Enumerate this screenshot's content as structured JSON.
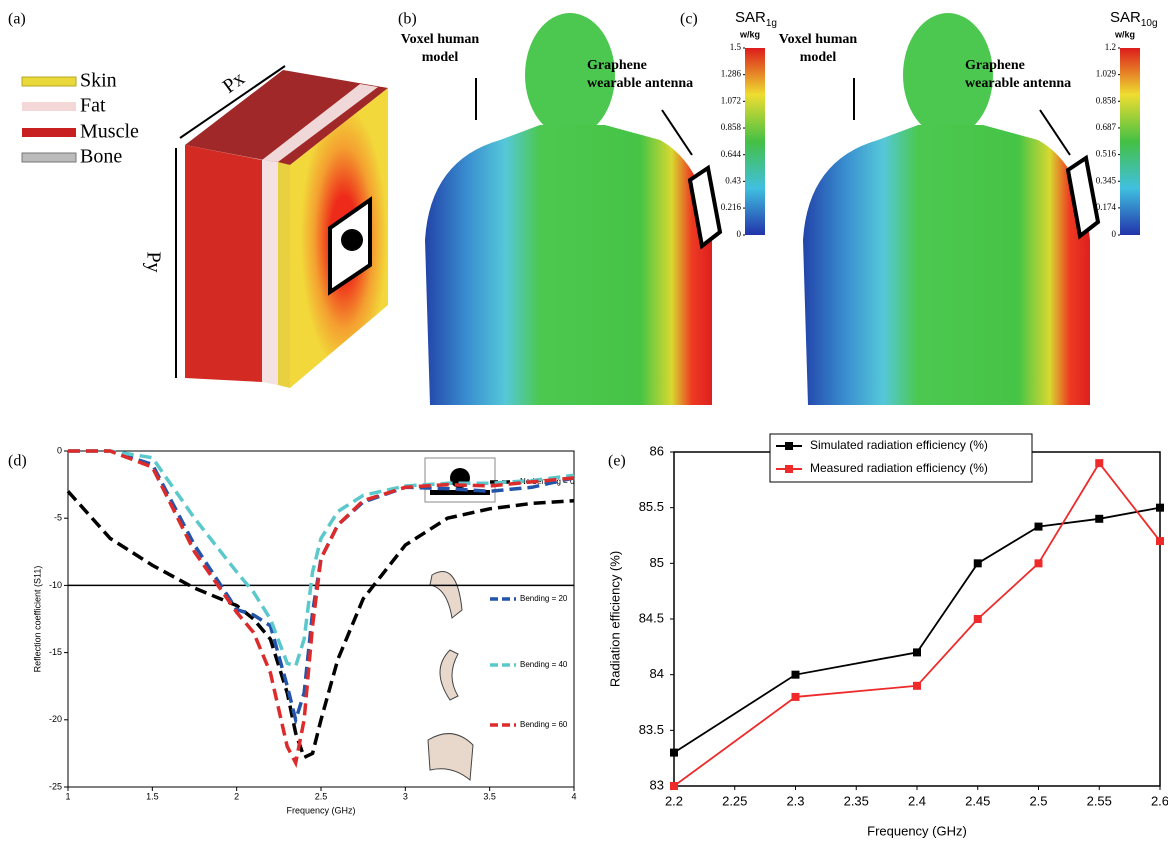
{
  "panels": {
    "a": {
      "label": "(a)",
      "legend": [
        "Skin",
        "Fat",
        "Muscle",
        "Bone"
      ],
      "dims": [
        "Px",
        "Py"
      ]
    },
    "b": {
      "label": "(b)",
      "annotations": [
        [
          "Voxel human",
          "model"
        ],
        [
          "Graphene",
          "wearable antenna"
        ]
      ],
      "colorbar": {
        "title": "SAR",
        "subscript": "1g",
        "unit": "w/kg",
        "ticks": [
          1.5,
          1.286,
          1.072,
          0.858,
          0.644,
          0.43,
          0.216,
          0
        ]
      }
    },
    "c": {
      "label": "(c)",
      "annotations": [
        [
          "Voxel human",
          "model"
        ],
        [
          "Graphene",
          "wearable antenna"
        ]
      ],
      "colorbar": {
        "title": "SAR",
        "subscript": "10g",
        "unit": "w/kg",
        "ticks": [
          1.2,
          1.029,
          0.858,
          0.687,
          0.516,
          0.345,
          0.174,
          0
        ]
      }
    }
  },
  "chart_data": [
    {
      "type": "line",
      "panel_label": "(d)",
      "x_label": "Frequency (GHz)",
      "y_label": "Reflection coefficient (S11)",
      "x": [
        1,
        1.25,
        1.5,
        1.75,
        2,
        2.1,
        2.2,
        2.3,
        2.35,
        2.4,
        2.45,
        2.5,
        2.6,
        2.75,
        3,
        3.25,
        3.5,
        3.75,
        4
      ],
      "series": [
        {
          "name": "No bending = 0",
          "color": "#000000",
          "values": [
            -3,
            -6.5,
            -8.5,
            -10.2,
            -11.5,
            -12.5,
            -14,
            -18,
            -21,
            -22.8,
            -22.5,
            -20,
            -15.5,
            -11,
            -7,
            -5,
            -4.3,
            -3.9,
            -3.7
          ]
        },
        {
          "name": "Bending = 20",
          "color": "#2255aa",
          "values": [
            0,
            0,
            -1,
            -7,
            -11.8,
            -12.2,
            -13,
            -17.5,
            -20,
            -18,
            -12,
            -8,
            -5.5,
            -3.8,
            -2.7,
            -2.8,
            -3,
            -2.7,
            -2
          ]
        },
        {
          "name": "Bending = 40",
          "color": "#5bc8cc",
          "values": [
            0,
            0,
            -0.5,
            -5,
            -9,
            -10.5,
            -12.5,
            -15.8,
            -16,
            -14,
            -9,
            -6.5,
            -4.5,
            -3.3,
            -2.6,
            -2.4,
            -2.4,
            -2.2,
            -1.8
          ]
        },
        {
          "name": "Bending = 60",
          "color": "#dd2b2b",
          "values": [
            0,
            0,
            -1.2,
            -7.5,
            -12,
            -13.5,
            -16.5,
            -22,
            -23.2,
            -20,
            -13,
            -8,
            -5.5,
            -3.7,
            -2.7,
            -2.5,
            -2.6,
            -2.3,
            -2
          ]
        }
      ],
      "xlim": [
        1,
        4
      ],
      "ylim": [
        -25,
        0
      ],
      "xticks": [
        1,
        1.5,
        2,
        2.5,
        3,
        3.5,
        4
      ],
      "yticks": [
        0,
        -5,
        -10,
        -15,
        -20,
        -25
      ],
      "reference_line": -10,
      "dashed": true,
      "legend": "right"
    },
    {
      "type": "line",
      "panel_label": "(e)",
      "x_label": "Frequency (GHz)",
      "y_label": "Radiation efficiency (%)",
      "x": [
        2.2,
        2.3,
        2.4,
        2.45,
        2.5,
        2.55,
        2.6
      ],
      "series": [
        {
          "name": "Simulated radiation efficiency (%)",
          "color": "#000000",
          "values": [
            83.3,
            84,
            84.2,
            85,
            85.33,
            85.4,
            85.5
          ]
        },
        {
          "name": "Measured radiation efficiency (%)",
          "color": "#ee2a2a",
          "values": [
            83,
            83.8,
            83.9,
            84.5,
            85,
            85.9,
            85.2
          ]
        }
      ],
      "xlim": [
        2.2,
        2.6
      ],
      "ylim": [
        83,
        86
      ],
      "xticks": [
        2.2,
        2.25,
        2.3,
        2.35,
        2.4,
        2.45,
        2.5,
        2.55,
        2.6
      ],
      "yticks": [
        83,
        83.5,
        84,
        84.5,
        85,
        85.5,
        86
      ],
      "marker": "square",
      "legend": "top"
    }
  ]
}
